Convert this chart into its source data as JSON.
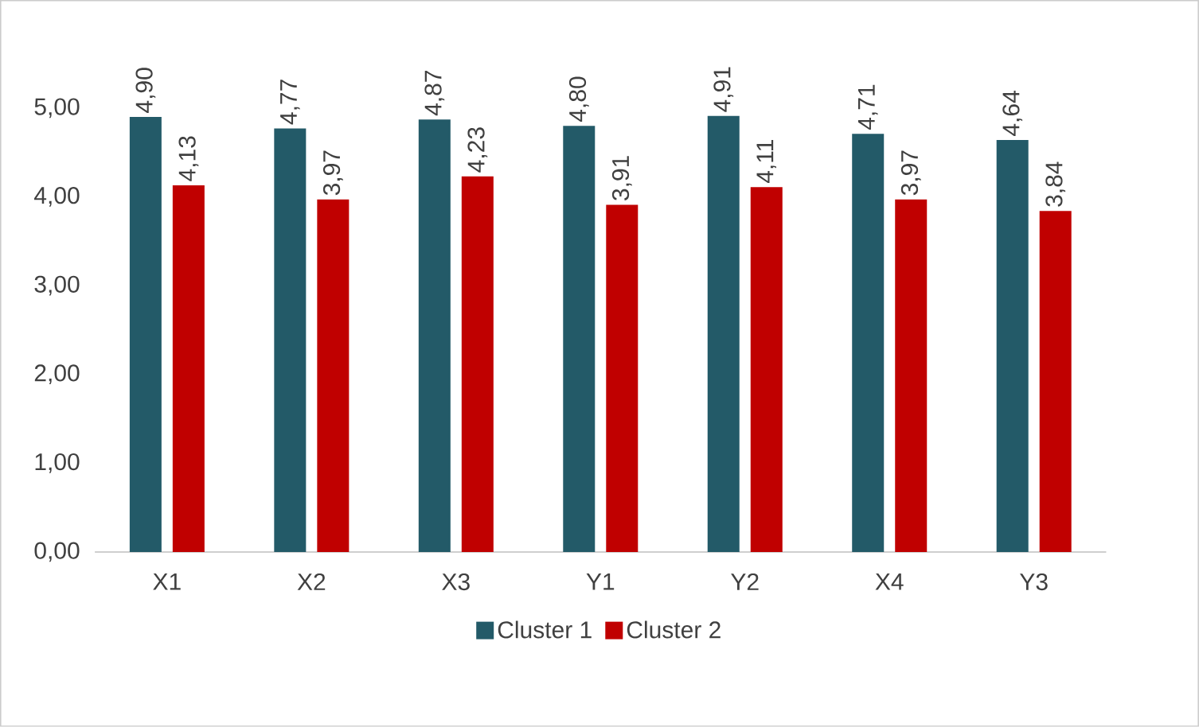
{
  "chart_data": {
    "type": "bar",
    "categories": [
      "X1",
      "X2",
      "X3",
      "Y1",
      "Y2",
      "X4",
      "Y3"
    ],
    "series": [
      {
        "name": "Cluster 1",
        "color": "#235a68",
        "values": [
          4.9,
          4.77,
          4.87,
          4.8,
          4.91,
          4.71,
          4.64
        ],
        "value_labels": [
          "4,90",
          "4,77",
          "4,87",
          "4,80",
          "4,91",
          "4,71",
          "4,64"
        ]
      },
      {
        "name": "Cluster 2",
        "color": "#c00000",
        "values": [
          4.13,
          3.97,
          4.23,
          3.91,
          4.11,
          3.97,
          3.84
        ],
        "value_labels": [
          "4,13",
          "3,97",
          "4,23",
          "3,91",
          "4,11",
          "3,97",
          "3,84"
        ]
      }
    ],
    "ylim": [
      0,
      5
    ],
    "yticks": [
      {
        "value": 0,
        "label": "0,00"
      },
      {
        "value": 1,
        "label": "1,00"
      },
      {
        "value": 2,
        "label": "2,00"
      },
      {
        "value": 3,
        "label": "3,00"
      },
      {
        "value": 4,
        "label": "4,00"
      },
      {
        "value": 5,
        "label": "5,00"
      }
    ],
    "legend": "bottom",
    "grid": false
  }
}
